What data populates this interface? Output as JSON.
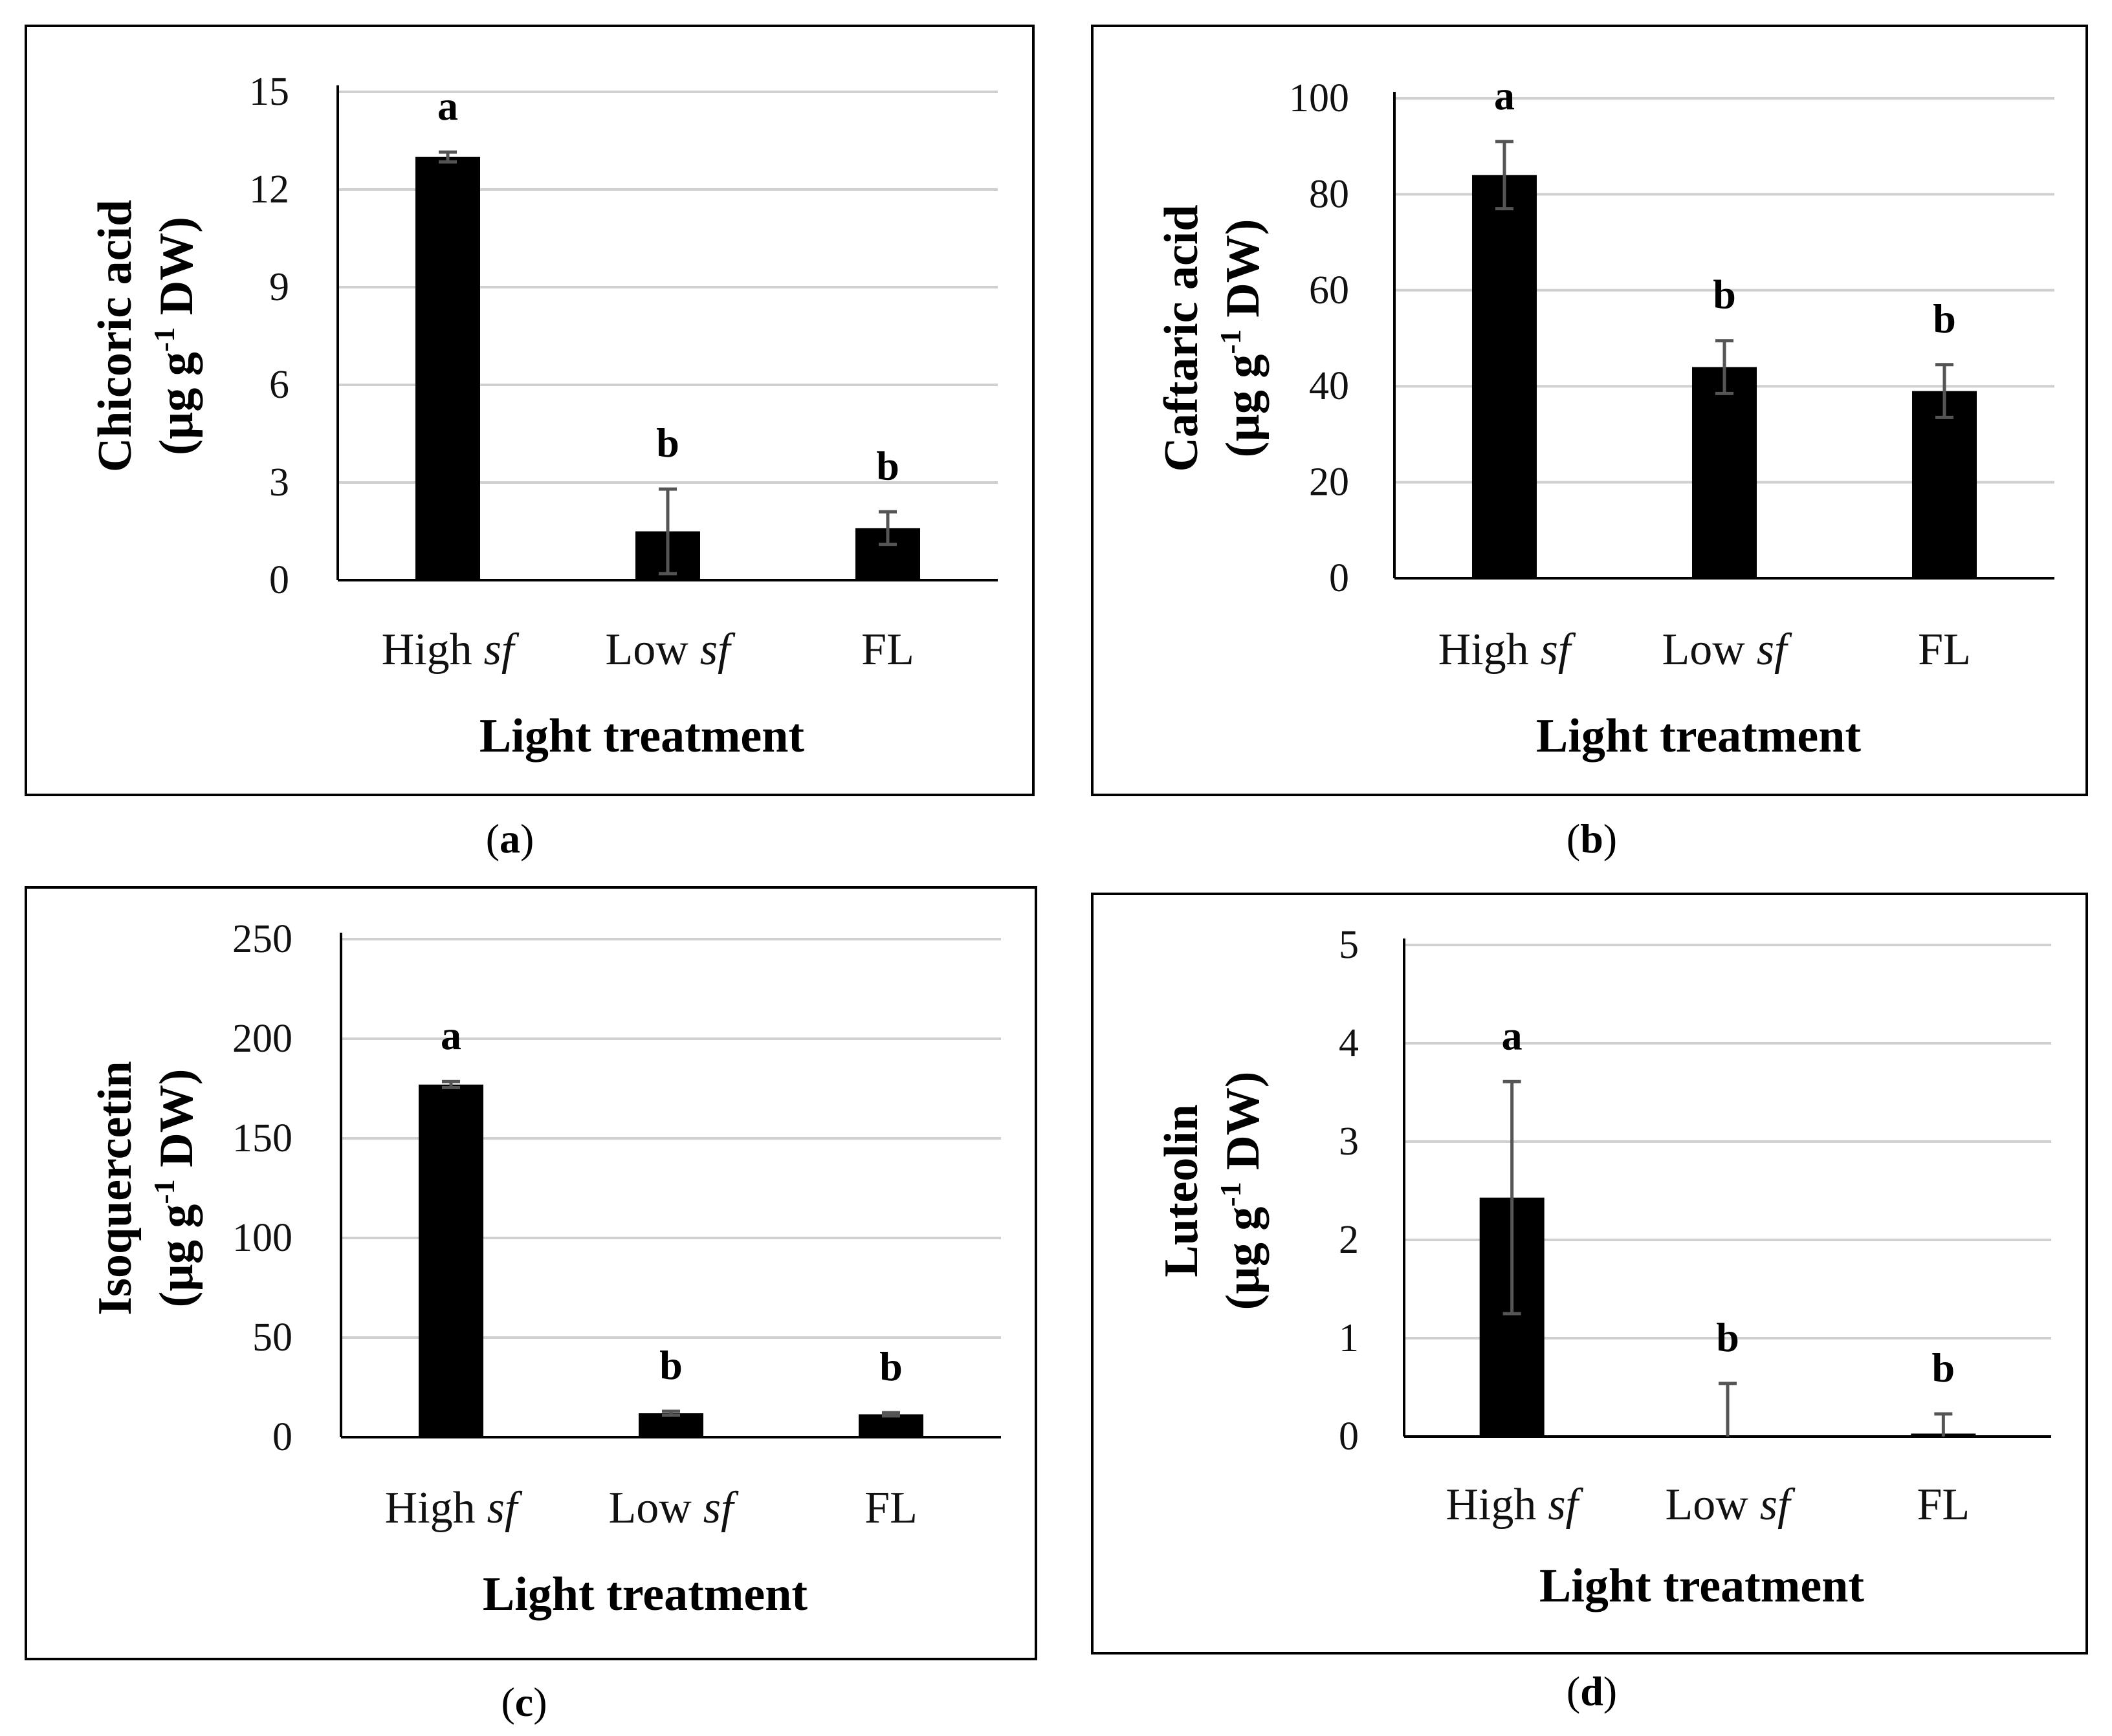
{
  "chart_data": [
    {
      "id": "a",
      "type": "bar",
      "panel_label": "a",
      "categories": [
        "High",
        "Low",
        "FL"
      ],
      "category_suffix": [
        "sf",
        "sf",
        ""
      ],
      "values": [
        13.0,
        1.5,
        1.6
      ],
      "errors": [
        0.15,
        1.3,
        0.5
      ],
      "letters": [
        "a",
        "b",
        "b"
      ],
      "ylabel_line1": "Chicoric acid",
      "ylabel_line2": "(µg g",
      "ylabel_sup": "-1",
      "ylabel_tail": " DW)",
      "xlabel": "Light treatment",
      "ylim": [
        0,
        15
      ],
      "yticks": [
        0,
        3,
        6,
        9,
        12,
        15
      ],
      "grid": true
    },
    {
      "id": "b",
      "type": "bar",
      "panel_label": "b",
      "categories": [
        "High",
        "Low",
        "FL"
      ],
      "category_suffix": [
        "sf",
        "sf",
        ""
      ],
      "values": [
        84,
        44,
        39
      ],
      "errors": [
        7,
        5.5,
        5.5
      ],
      "letters": [
        "a",
        "b",
        "b"
      ],
      "ylabel_line1": "Caftaric acid",
      "ylabel_line2": "(µg g",
      "ylabel_sup": "-1",
      "ylabel_tail": " DW)",
      "xlabel": "Light treatment",
      "ylim": [
        0,
        100
      ],
      "yticks": [
        0,
        20,
        40,
        60,
        80,
        100
      ],
      "grid": true
    },
    {
      "id": "c",
      "type": "bar",
      "panel_label": "c",
      "categories": [
        "High",
        "Low",
        "FL"
      ],
      "category_suffix": [
        "sf",
        "sf",
        ""
      ],
      "values": [
        177,
        12,
        11.5
      ],
      "errors": [
        1.5,
        1.0,
        0.8
      ],
      "letters": [
        "a",
        "b",
        "b"
      ],
      "ylabel_line1": "Isoquercetin",
      "ylabel_line2": "(µg g",
      "ylabel_sup": "-1",
      "ylabel_tail": " DW)",
      "xlabel": "Light treatment",
      "ylim": [
        0,
        250
      ],
      "yticks": [
        0,
        50,
        100,
        150,
        200,
        250
      ],
      "grid": true
    },
    {
      "id": "d",
      "type": "bar",
      "panel_label": "d",
      "categories": [
        "High",
        "Low",
        "FL"
      ],
      "category_suffix": [
        "sf",
        "sf",
        ""
      ],
      "values": [
        2.43,
        0.0,
        0.03
      ],
      "errors": [
        1.18,
        0.54,
        0.2
      ],
      "letters": [
        "a",
        "b",
        "b"
      ],
      "ylabel_line1": "Luteolin",
      "ylabel_line2": "(µg g",
      "ylabel_sup": "-1",
      "ylabel_tail": " DW)",
      "xlabel": "Light treatment",
      "ylim": [
        0,
        5
      ],
      "yticks": [
        0,
        1,
        2,
        3,
        4,
        5
      ],
      "grid": true
    }
  ]
}
